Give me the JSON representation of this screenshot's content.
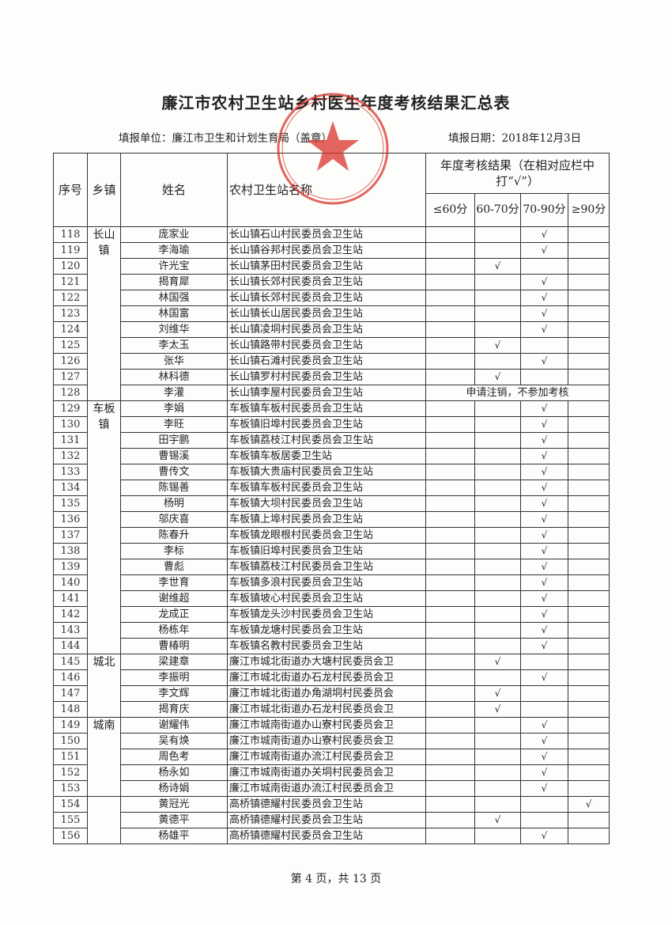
{
  "title": "廉江市农村卫生站乡村医生年度考核结果汇总表",
  "unit_label": "填报单位：廉江市卫生和计划生育局（盖章）",
  "date_label": "填报日期：2018年12月3日",
  "stamp": {
    "text": "廉江市卫生和计划生育局",
    "color": "#d9342b"
  },
  "headers": {
    "seq": "序号",
    "town": "乡镇",
    "name": "姓名",
    "station": "农村卫生站名称",
    "result_group": "年度考核结果（在相对应栏中打“√”）",
    "grades": [
      "≤60分",
      "60-70分",
      "70-90分",
      "≥90分"
    ]
  },
  "check_mark": "√",
  "towns": [
    {
      "label": "长山镇",
      "rows": 11
    },
    {
      "label": "车板镇",
      "rows": 16
    },
    {
      "label": "城北",
      "rows": 4
    },
    {
      "label": "城南",
      "rows": 5
    },
    {
      "label": "",
      "rows": 3
    }
  ],
  "rows": [
    {
      "seq": "118",
      "name": "庞家业",
      "station": "长山镇石山村民委员会卫生站",
      "grade": 2
    },
    {
      "seq": "119",
      "name": "李海瑜",
      "station": "长山镇谷邦村民委员会卫生站",
      "grade": 2
    },
    {
      "seq": "120",
      "name": "许光宝",
      "station": "长山镇茅田村民委员会卫生站",
      "grade": 1
    },
    {
      "seq": "121",
      "name": "揭育犀",
      "station": "长山镇长郊村民委员会卫生站",
      "grade": 2
    },
    {
      "seq": "122",
      "name": "林国强",
      "station": "长山镇长郊村民委员会卫生站",
      "grade": 2
    },
    {
      "seq": "123",
      "name": "林国富",
      "station": "长山镇长山居民委员会卫生站",
      "grade": 2
    },
    {
      "seq": "124",
      "name": "刘维华",
      "station": "长山镇凌垌村民委员会卫生站",
      "grade": 2
    },
    {
      "seq": "125",
      "name": "李太玉",
      "station": "长山镇路带村民委员会卫生站",
      "grade": 1
    },
    {
      "seq": "126",
      "name": "张华",
      "station": "长山镇石滩村民委员会卫生站",
      "grade": 2
    },
    {
      "seq": "127",
      "name": "林科德",
      "station": "长山镇罗村村民委员会卫生站",
      "grade": 1
    },
    {
      "seq": "128",
      "name": "李灌",
      "station": "长山镇李屋村民委员会卫生站",
      "note": "申请注销，不参加考核"
    },
    {
      "seq": "129",
      "name": "李娟",
      "station": "车板镇车板村民委员会卫生站",
      "grade": 2
    },
    {
      "seq": "130",
      "name": "李旺",
      "station": "车板镇旧埠村民委员会卫生站",
      "grade": 2
    },
    {
      "seq": "131",
      "name": "田宇鹏",
      "station": "车板镇荔枝江村民委员会卫生站",
      "grade": 2
    },
    {
      "seq": "132",
      "name": "曹锡溪",
      "station": "车板镇车板居委卫生站",
      "grade": 2
    },
    {
      "seq": "133",
      "name": "曹传文",
      "station": "车板镇大贵庙村民委员会卫生站",
      "grade": 2
    },
    {
      "seq": "134",
      "name": "陈锡善",
      "station": "车板镇车板村民委员会卫生站",
      "grade": 2
    },
    {
      "seq": "135",
      "name": "杨明",
      "station": "车板镇大坝村民委员会卫生站",
      "grade": 2
    },
    {
      "seq": "136",
      "name": "邬庆喜",
      "station": "车板镇上埠村民委员会卫生站",
      "grade": 2
    },
    {
      "seq": "137",
      "name": "陈春升",
      "station": "车板镇龙眼根村民委员会卫生站",
      "grade": 2
    },
    {
      "seq": "138",
      "name": "李标",
      "station": "车板镇旧埠村民委员会卫生站",
      "grade": 2
    },
    {
      "seq": "139",
      "name": "曹彪",
      "station": "车板镇荔枝江村民委员会卫生站",
      "grade": 2
    },
    {
      "seq": "140",
      "name": "李世育",
      "station": "车板镇多浪村民委员会卫生站",
      "grade": 2
    },
    {
      "seq": "141",
      "name": "谢维超",
      "station": "车板镇坡心村民委员会卫生站",
      "grade": 2
    },
    {
      "seq": "142",
      "name": "龙成正",
      "station": "车板镇龙头沙村民委员会卫生站",
      "grade": 2
    },
    {
      "seq": "143",
      "name": "杨栋年",
      "station": "车板镇龙塘村民委员会卫生站",
      "grade": 2
    },
    {
      "seq": "144",
      "name": "曹椿明",
      "station": "车板镇名教村民委员会卫生站",
      "grade": 2
    },
    {
      "seq": "145",
      "name": "梁建章",
      "station": "廉江市城北街道办大塘村民委员会卫",
      "grade": 1
    },
    {
      "seq": "146",
      "name": "李振明",
      "station": "廉江市城北街道办石龙村民委员会卫",
      "grade": 2
    },
    {
      "seq": "147",
      "name": "李文辉",
      "station": "廉江市城北街道办角湖垌村民委员会",
      "grade": 1
    },
    {
      "seq": "148",
      "name": "揭育庆",
      "station": "廉江市城北街道办石龙村民委员会卫",
      "grade": 1
    },
    {
      "seq": "149",
      "name": "谢耀伟",
      "station": "廉江市城南街道办山寮村民委员会卫",
      "grade": 2
    },
    {
      "seq": "150",
      "name": "吴有焕",
      "station": "廉江市城南街道办山寮村民委员会卫",
      "grade": 2
    },
    {
      "seq": "151",
      "name": "周色考",
      "station": "廉江市城南街道办流江村民委员会卫",
      "grade": 2
    },
    {
      "seq": "152",
      "name": "杨永如",
      "station": "廉江市城南街道办关垌村民委员会卫",
      "grade": 2
    },
    {
      "seq": "153",
      "name": "杨诗娟",
      "station": "廉江市城南街道办流江村民委员会卫",
      "grade": 2
    },
    {
      "seq": "154",
      "name": "黄冠光",
      "station": "高桥镇德耀村民委员会卫生站",
      "grade": 3
    },
    {
      "seq": "155",
      "name": "黄德平",
      "station": "高桥镇德耀村民委员会卫生站",
      "grade": 1
    },
    {
      "seq": "156",
      "name": "杨雄平",
      "station": "高桥镇德耀村民委员会卫生站",
      "grade": 2
    }
  ],
  "footer": "第 4 页，共 13 页"
}
